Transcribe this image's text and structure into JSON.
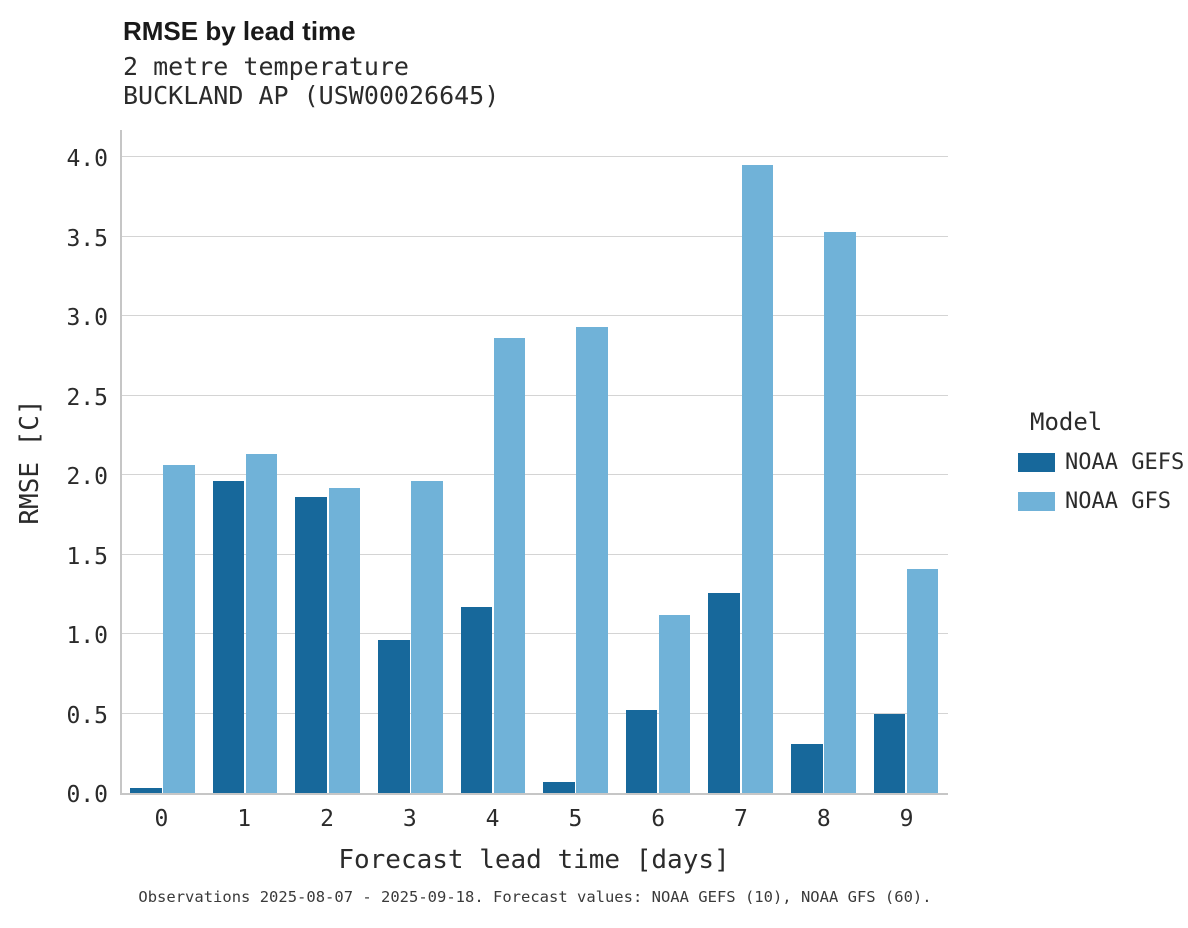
{
  "title": "RMSE by lead time",
  "subtitle_lines": [
    "2 metre temperature",
    "BUCKLAND AP (USW00026645)"
  ],
  "legend": {
    "title": "Model"
  },
  "caption": "Observations 2025-08-07 - 2025-09-18. Forecast values: NOAA GEFS (10), NOAA GFS (60).",
  "chart_data": {
    "type": "bar",
    "title": "RMSE by lead time",
    "subtitle": "2 metre temperature, BUCKLAND AP (USW00026645)",
    "xlabel": "Forecast lead time [days]",
    "ylabel": "RMSE [C]",
    "categories": [
      "0",
      "1",
      "2",
      "3",
      "4",
      "5",
      "6",
      "7",
      "8",
      "9"
    ],
    "series": [
      {
        "name": "NOAA GEFS",
        "color": "#17689b",
        "values": [
          0.03,
          1.96,
          1.86,
          0.96,
          1.17,
          0.07,
          0.52,
          1.26,
          0.31,
          0.5
        ]
      },
      {
        "name": "NOAA GFS",
        "color": "#70b2d8",
        "values": [
          2.06,
          2.13,
          1.92,
          1.96,
          2.86,
          2.93,
          1.12,
          3.95,
          3.53,
          1.41
        ]
      }
    ],
    "ylim": [
      0,
      4.0
    ],
    "yticks": [
      0.0,
      0.5,
      1.0,
      1.5,
      2.0,
      2.5,
      3.0,
      3.5,
      4.0
    ],
    "grid": true,
    "legend_position": "right"
  }
}
